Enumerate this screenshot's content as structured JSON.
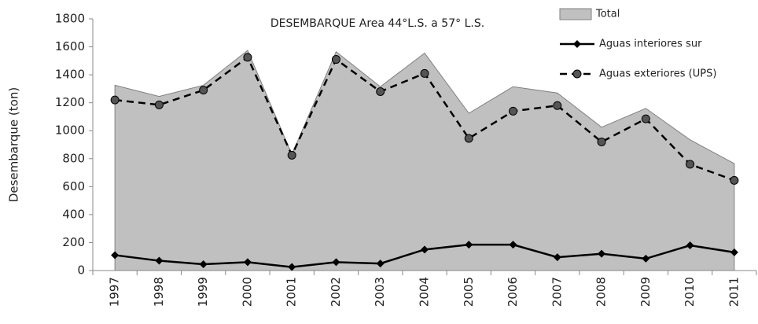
{
  "chart_data": {
    "type": "line",
    "title": "DESEMBARQUE Area 44°L.S. a 57° L.S.",
    "y_label": "Desembarque (ton)",
    "categories": [
      "1997",
      "1998",
      "1999",
      "2000",
      "2001",
      "2002",
      "2003",
      "2004",
      "2005",
      "2006",
      "2007",
      "2008",
      "2009",
      "2010",
      "2011"
    ],
    "ylim": [
      0,
      1800
    ],
    "yticks": [
      0,
      200,
      400,
      600,
      800,
      1000,
      1200,
      1400,
      1600,
      1800
    ],
    "grid": false,
    "legend": "upper right",
    "series": [
      {
        "name": "Total",
        "type": "area",
        "color": "#c0c0c0",
        "values": [
          1325,
          1245,
          1325,
          1575,
          830,
          1565,
          1315,
          1555,
          1125,
          1315,
          1270,
          1025,
          1160,
          935,
          765
        ]
      },
      {
        "name": "Aguas interiores sur",
        "type": "line",
        "color": "#000000",
        "marker": "diamond",
        "dashed": false,
        "values": [
          110,
          70,
          45,
          60,
          25,
          60,
          50,
          150,
          185,
          185,
          95,
          120,
          85,
          180,
          130
        ]
      },
      {
        "name": "Aguas exteriores (UPS)",
        "type": "line",
        "color": "#000000",
        "marker": "circle",
        "dashed": true,
        "values": [
          1220,
          1185,
          1290,
          1525,
          825,
          1510,
          1280,
          1410,
          945,
          1140,
          1180,
          920,
          1085,
          760,
          645
        ]
      }
    ]
  }
}
